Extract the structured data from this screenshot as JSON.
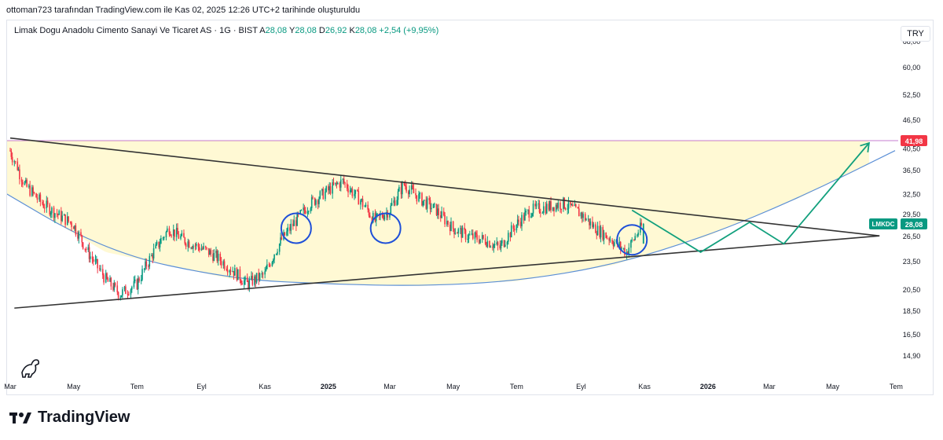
{
  "header": {
    "attribution": "ottoman723 tarafından TradingView.com ile Kas 02, 2025 12:26 UTC+2 tarihinde oluşturuldu"
  },
  "legend": {
    "symbol": "Limak Dogu Anadolu Cimento Sanayi Ve Ticaret AS · 1G · BIST",
    "open_label": "A",
    "open": "28,08",
    "high_label": "Y",
    "high": "28,08",
    "low_label": "D",
    "low": "26,92",
    "close_label": "K",
    "close": "28,08",
    "change": "+2,54 (+9,95%)"
  },
  "currency": "TRY",
  "brand": {
    "name": "TradingView"
  },
  "colors": {
    "up": "#089981",
    "down": "#f23645",
    "wedge": "#fff8cc",
    "line": "#333333",
    "arc": "#5b8fd6",
    "path": "#12a07d",
    "resistance": "#9c27b0"
  },
  "chart_data": {
    "type": "candlestick",
    "y_scale": "log",
    "ylim": [
      13.5,
      75
    ],
    "xlim": [
      "2024-03-01",
      "2026-06-30"
    ],
    "y_ticks": [
      "68,00",
      "60,00",
      "52,50",
      "46,50",
      "40,50",
      "36,50",
      "32,50",
      "29,50",
      "26,50",
      "23,50",
      "20,50",
      "18,50",
      "16,50",
      "14,90"
    ],
    "x_ticks": [
      {
        "label": "Mar",
        "date": "2024-03-01"
      },
      {
        "label": "May",
        "date": "2024-05-01"
      },
      {
        "label": "Tem",
        "date": "2024-07-01"
      },
      {
        "label": "Eyl",
        "date": "2024-09-01"
      },
      {
        "label": "Kas",
        "date": "2024-11-01"
      },
      {
        "label": "2025",
        "date": "2025-01-01"
      },
      {
        "label": "Mar",
        "date": "2025-03-01"
      },
      {
        "label": "May",
        "date": "2025-05-01"
      },
      {
        "label": "Tem",
        "date": "2025-07-01"
      },
      {
        "label": "Eyl",
        "date": "2025-09-01"
      },
      {
        "label": "Kas",
        "date": "2025-11-01"
      },
      {
        "label": "2026",
        "date": "2026-01-01"
      },
      {
        "label": "Mar",
        "date": "2026-03-01"
      },
      {
        "label": "May",
        "date": "2026-05-01"
      },
      {
        "label": "Tem",
        "date": "2026-07-01"
      }
    ],
    "price_labels": [
      {
        "text": "41,98",
        "value": 41.98,
        "color": "#f23645"
      },
      {
        "text": "LMKDC",
        "value": 28.08,
        "color": "#089981"
      },
      {
        "text": "28,08",
        "value": 28.08,
        "color": "#089981"
      }
    ],
    "resistance_level": 41.98,
    "trendlines": [
      {
        "name": "upper",
        "from": [
          "2024-03-01",
          42.5
        ],
        "to": [
          "2026-06-15",
          26.5
        ]
      },
      {
        "name": "lower",
        "from": [
          "2024-03-05",
          18.7
        ],
        "to": [
          "2026-06-15",
          26.5
        ]
      }
    ],
    "arc": [
      [
        "2024-02-01",
        35.0
      ],
      [
        "2024-06-01",
        24.5
      ],
      [
        "2024-10-01",
        21.5
      ],
      [
        "2025-01-01",
        21.0
      ],
      [
        "2025-04-01",
        20.8
      ],
      [
        "2025-07-01",
        21.3
      ],
      [
        "2025-10-01",
        23.0
      ],
      [
        "2026-01-01",
        26.5
      ],
      [
        "2026-04-01",
        32.0
      ],
      [
        "2026-06-30",
        40.0
      ]
    ],
    "projection": [
      [
        "2025-10-20",
        30.0
      ],
      [
        "2025-12-25",
        24.5
      ],
      [
        "2026-02-10",
        28.3
      ],
      [
        "2026-03-15",
        25.5
      ],
      [
        "2026-06-05",
        41.5
      ]
    ],
    "circles": [
      [
        "2024-12-01",
        27.5
      ],
      [
        "2025-02-25",
        27.5
      ],
      [
        "2025-10-20",
        26.0
      ]
    ],
    "closes": [
      [
        "2024-03-01",
        40.0
      ],
      [
        "2024-03-15",
        34.0
      ],
      [
        "2024-04-01",
        31.0
      ],
      [
        "2024-04-15",
        29.5
      ],
      [
        "2024-05-01",
        28.0
      ],
      [
        "2024-05-15",
        24.5
      ],
      [
        "2024-06-01",
        21.5
      ],
      [
        "2024-06-15",
        20.0
      ],
      [
        "2024-07-01",
        21.0
      ],
      [
        "2024-07-15",
        24.0
      ],
      [
        "2024-08-01",
        27.5
      ],
      [
        "2024-08-15",
        26.0
      ],
      [
        "2024-09-01",
        25.0
      ],
      [
        "2024-09-15",
        24.0
      ],
      [
        "2024-10-01",
        22.5
      ],
      [
        "2024-10-15",
        21.0
      ],
      [
        "2024-11-01",
        22.0
      ],
      [
        "2024-11-15",
        25.5
      ],
      [
        "2024-12-01",
        28.5
      ],
      [
        "2024-12-15",
        31.0
      ],
      [
        "2025-01-01",
        33.0
      ],
      [
        "2025-01-15",
        34.5
      ],
      [
        "2025-02-01",
        31.5
      ],
      [
        "2025-02-15",
        28.5
      ],
      [
        "2025-03-01",
        30.0
      ],
      [
        "2025-03-15",
        34.0
      ],
      [
        "2025-04-01",
        31.5
      ],
      [
        "2025-04-15",
        30.0
      ],
      [
        "2025-05-01",
        27.5
      ],
      [
        "2025-05-15",
        26.5
      ],
      [
        "2025-06-01",
        26.0
      ],
      [
        "2025-06-15",
        25.0
      ],
      [
        "2025-07-01",
        28.0
      ],
      [
        "2025-07-15",
        30.0
      ],
      [
        "2025-08-01",
        30.5
      ],
      [
        "2025-08-15",
        31.0
      ],
      [
        "2025-09-01",
        29.5
      ],
      [
        "2025-09-15",
        27.5
      ],
      [
        "2025-10-01",
        26.0
      ],
      [
        "2025-10-15",
        24.5
      ],
      [
        "2025-10-31",
        28.08
      ]
    ]
  }
}
